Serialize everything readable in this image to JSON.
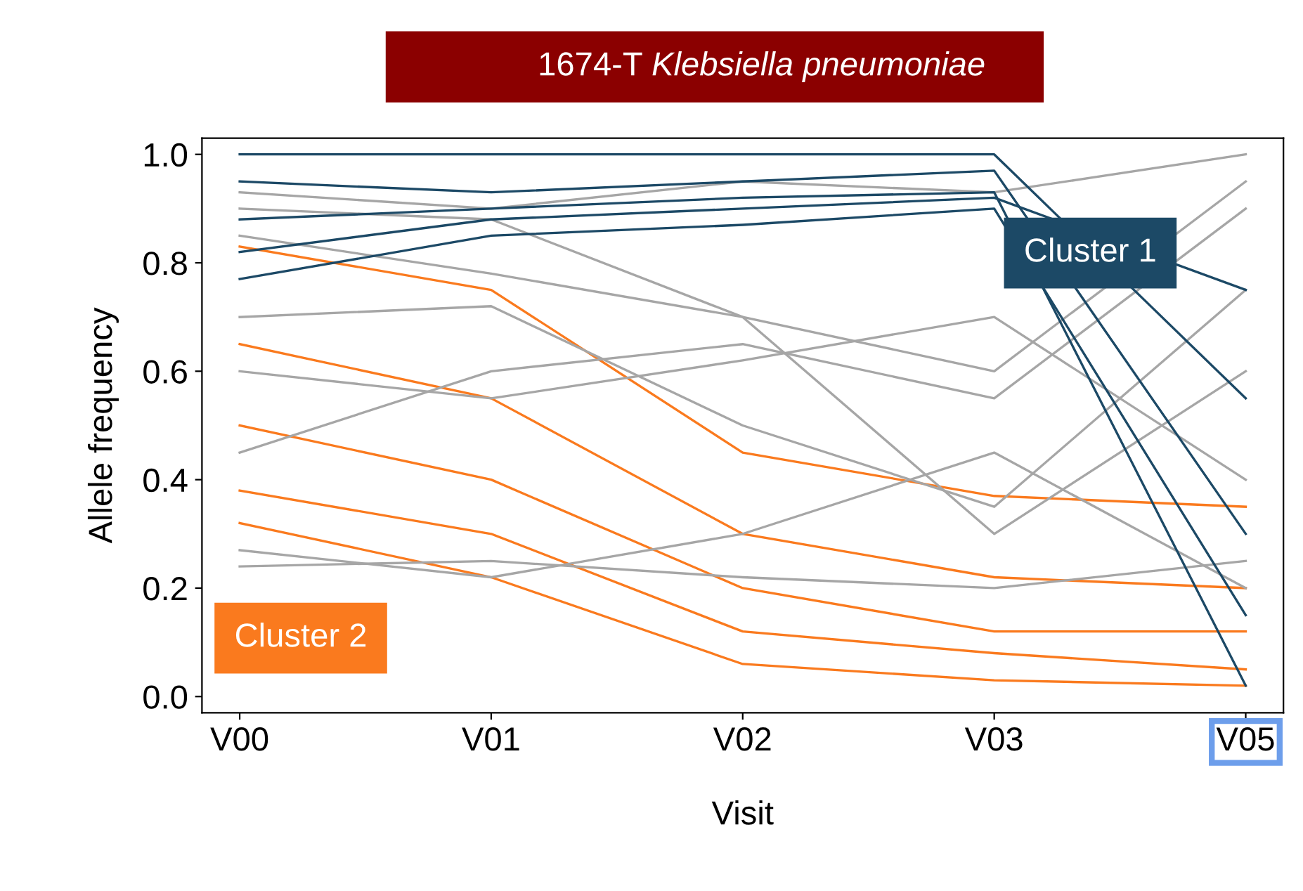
{
  "chart_data": {
    "type": "line",
    "title": "1674-T Klebsiella pneumoniae",
    "xlabel": "Visit",
    "ylabel": "Allele frequency",
    "categories": [
      "V00",
      "V01",
      "V02",
      "V03",
      "V05"
    ],
    "ylim": [
      -0.03,
      1.03
    ],
    "yticks": [
      {
        "value": 0,
        "label": "0.0"
      },
      {
        "value": 0.2,
        "label": "0.2"
      },
      {
        "value": 0.4,
        "label": "0.4"
      },
      {
        "value": 0.6,
        "label": "0.6"
      },
      {
        "value": 0.8,
        "label": "0.8"
      },
      {
        "value": 1,
        "label": "1.0"
      }
    ],
    "grid": false,
    "legend": false,
    "marker": "none",
    "line_style": "solid",
    "series": [
      {
        "name": "Cluster 2",
        "color": "#fa7a1e",
        "values": [
          0.5,
          0.4,
          0.2,
          0.12,
          0.12
        ]
      },
      {
        "color": "#fa7a1e",
        "values": [
          0.83,
          0.75,
          0.45,
          0.37,
          0.35
        ]
      },
      {
        "color": "#fa7a1e",
        "values": [
          0.65,
          0.55,
          0.3,
          0.22,
          0.2
        ]
      },
      {
        "color": "#fa7a1e",
        "values": [
          0.38,
          0.3,
          0.12,
          0.08,
          0.05
        ]
      },
      {
        "color": "#fa7a1e",
        "values": [
          0.32,
          0.22,
          0.06,
          0.03,
          0.02
        ]
      },
      {
        "color": "#a6a6a6",
        "values": [
          0.93,
          0.9,
          0.95,
          0.93,
          1.0
        ]
      },
      {
        "color": "#a6a6a6",
        "values": [
          0.85,
          0.78,
          0.7,
          0.6,
          0.95
        ]
      },
      {
        "color": "#a6a6a6",
        "values": [
          0.45,
          0.6,
          0.65,
          0.55,
          0.9
        ]
      },
      {
        "color": "#a6a6a6",
        "values": [
          0.27,
          0.22,
          0.3,
          0.45,
          0.2
        ]
      },
      {
        "color": "#a6a6a6",
        "values": [
          0.6,
          0.55,
          0.62,
          0.7,
          0.4
        ]
      },
      {
        "color": "#a6a6a6",
        "values": [
          0.24,
          0.25,
          0.22,
          0.2,
          0.25
        ]
      },
      {
        "color": "#a6a6a6",
        "values": [
          0.7,
          0.72,
          0.5,
          0.35,
          0.75
        ]
      },
      {
        "color": "#a6a6a6",
        "values": [
          0.9,
          0.88,
          0.7,
          0.3,
          0.6
        ]
      },
      {
        "name": "Cluster 1",
        "color": "#1c4966",
        "values": [
          0.95,
          0.93,
          0.95,
          0.97,
          0.3
        ]
      },
      {
        "color": "#1c4966",
        "values": [
          1.0,
          1.0,
          1.0,
          1.0,
          0.55
        ]
      },
      {
        "color": "#1c4966",
        "values": [
          0.88,
          0.9,
          0.92,
          0.93,
          0.02
        ]
      },
      {
        "color": "#1c4966",
        "values": [
          0.82,
          0.88,
          0.9,
          0.92,
          0.75
        ]
      },
      {
        "color": "#1c4966",
        "values": [
          0.77,
          0.85,
          0.87,
          0.9,
          0.15
        ]
      }
    ]
  }
}
